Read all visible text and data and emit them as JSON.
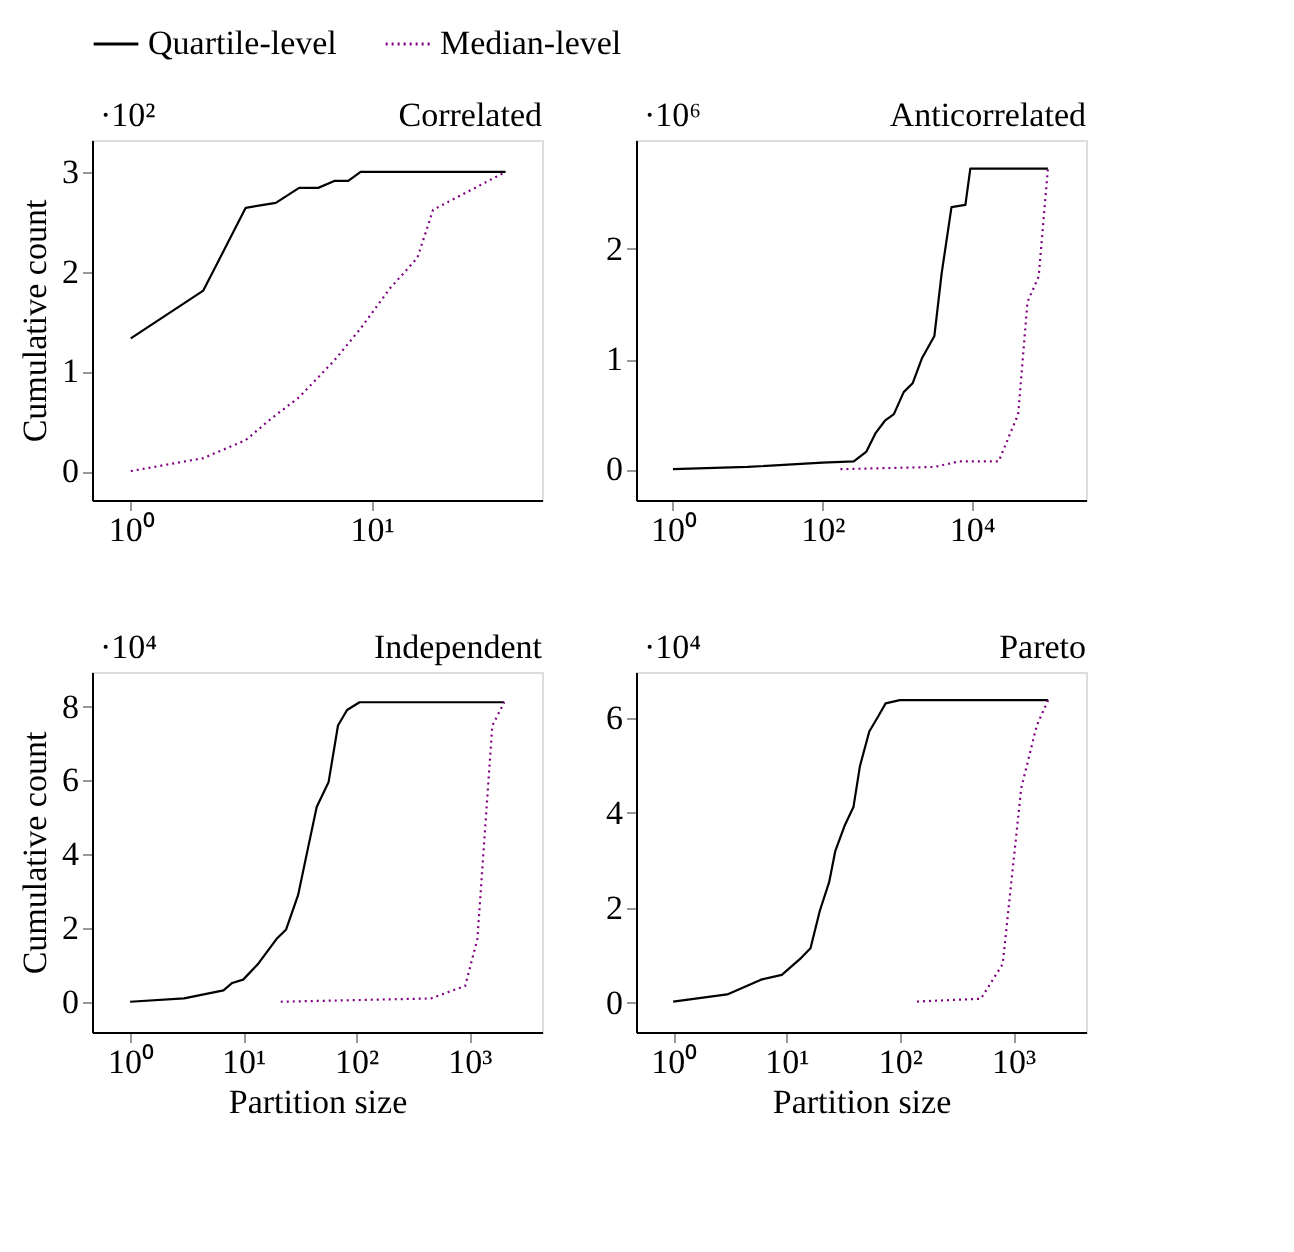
{
  "chart_data": [
    {
      "type": "line",
      "title": "Correlated",
      "annotations": [
        "·10²"
      ],
      "ylabel": "Cumulative count",
      "legend": "top",
      "log": "x",
      "xlim": [
        0.69,
        51
      ],
      "xticks": [
        {
          "value": 1,
          "label": "10⁰"
        },
        {
          "value": 10,
          "label": "10¹"
        }
      ],
      "ylim": [
        -0.29,
        3.32
      ],
      "yticks": [
        0,
        1,
        2,
        3
      ],
      "series": [
        {
          "name": "Quartile-level",
          "color": "#000000",
          "line_style": "solid",
          "x": [
            1,
            2,
            3,
            4,
            5,
            6,
            7,
            8,
            9,
            36
          ],
          "values": [
            1.33,
            1.81,
            2.64,
            2.69,
            2.84,
            2.84,
            2.91,
            2.91,
            3.0,
            3.0
          ]
        },
        {
          "name": "Median-level",
          "color": "#800080",
          "line_style": "dotted",
          "x": [
            1,
            2,
            3,
            3.8,
            5,
            7,
            9,
            11.9,
            15.5,
            18,
            36
          ],
          "values": [
            0,
            0.13,
            0.31,
            0.52,
            0.74,
            1.11,
            1.43,
            1.83,
            2.14,
            2.62,
            3.0
          ]
        }
      ]
    },
    {
      "type": "line",
      "title": "Anticorrelated",
      "annotations": [
        "·10⁶"
      ],
      "log": "x",
      "xlim": [
        0.32,
        340000
      ],
      "xticks": [
        {
          "value": 1,
          "label": "10⁰"
        },
        {
          "value": 100,
          "label": "10²"
        },
        {
          "value": 10000,
          "label": "10⁴"
        }
      ],
      "ylim": [
        -0.28,
        2.99
      ],
      "yticks": [
        0,
        1,
        2
      ],
      "series": [
        {
          "name": "Quartile-level",
          "color": "#000000",
          "line_style": "solid",
          "x": [
            1,
            10,
            100,
            264,
            390,
            520,
            690,
            910,
            1230,
            1620,
            2170,
            3170,
            3970,
            5370,
            8250,
            9600,
            105000
          ],
          "values": [
            0,
            0.02,
            0.06,
            0.07,
            0.16,
            0.33,
            0.44,
            0.5,
            0.7,
            0.78,
            1.01,
            1.21,
            1.78,
            2.38,
            2.4,
            2.73,
            2.73
          ]
        },
        {
          "name": "Median-level",
          "color": "#800080",
          "line_style": "dotted",
          "x": [
            175,
            3170,
            6800,
            23000,
            42000,
            56000,
            79000,
            105000
          ],
          "values": [
            0,
            0.02,
            0.07,
            0.07,
            0.5,
            1.52,
            1.75,
            2.73
          ]
        }
      ]
    },
    {
      "type": "line",
      "title": "Independent",
      "annotations": [
        "·10⁴"
      ],
      "xlabel": "Partition size",
      "ylabel": "Cumulative count",
      "log": "x",
      "xlim": [
        0.46,
        4400
      ],
      "xticks": [
        {
          "value": 1,
          "label": "10⁰"
        },
        {
          "value": 10,
          "label": "10¹"
        },
        {
          "value": 100,
          "label": "10²"
        },
        {
          "value": 1000,
          "label": "10³"
        }
      ],
      "ylim": [
        -0.82,
        8.94
      ],
      "yticks": [
        0,
        2,
        4,
        6,
        8
      ],
      "series": [
        {
          "name": "Quartile-level",
          "color": "#000000",
          "line_style": "solid",
          "x": [
            1,
            3,
            6.7,
            8,
            10,
            13.5,
            19.7,
            24,
            30.6,
            37,
            44.7,
            57,
            69,
            83,
            107,
            2040
          ],
          "values": [
            0,
            0.09,
            0.31,
            0.51,
            0.6,
            1.02,
            1.7,
            1.96,
            2.89,
            4.09,
            5.28,
            5.96,
            7.49,
            7.91,
            8.12,
            8.12
          ]
        },
        {
          "name": "Median-level",
          "color": "#800080",
          "line_style": "dotted",
          "x": [
            21.5,
            457,
            920,
            1180,
            1600,
            2040
          ],
          "values": [
            0,
            0.09,
            0.43,
            1.7,
            7.49,
            8.12
          ]
        }
      ]
    },
    {
      "type": "line",
      "title": "Pareto",
      "annotations": [
        "·10⁴"
      ],
      "xlabel": "Partition size",
      "log": "x",
      "xlim": [
        0.47,
        4400
      ],
      "xticks": [
        {
          "value": 1,
          "label": "10⁰"
        },
        {
          "value": 10,
          "label": "10¹"
        },
        {
          "value": 100,
          "label": "10²"
        },
        {
          "value": 1000,
          "label": "10³"
        }
      ],
      "ylim": [
        -0.61,
        6.96
      ],
      "yticks": [
        0,
        2,
        4,
        6
      ],
      "series": [
        {
          "name": "Quartile-level",
          "color": "#000000",
          "line_style": "solid",
          "x": [
            1,
            3,
            5.96,
            9.1,
            13.5,
            16.3,
            19.7,
            23.8,
            27,
            32.5,
            39,
            44.5,
            53.8,
            65,
            75,
            100,
            2040
          ],
          "values": [
            0.03,
            0.18,
            0.49,
            0.59,
            0.95,
            1.15,
            1.94,
            2.54,
            3.2,
            3.72,
            4.12,
            4.98,
            5.71,
            6.04,
            6.3,
            6.37,
            6.37
          ]
        },
        {
          "name": "Median-level",
          "color": "#800080",
          "line_style": "dotted",
          "x": [
            142,
            520,
            810,
            1180,
            1620,
            2040
          ],
          "values": [
            0.03,
            0.09,
            0.82,
            4.52,
            5.84,
            6.37
          ]
        }
      ]
    }
  ]
}
